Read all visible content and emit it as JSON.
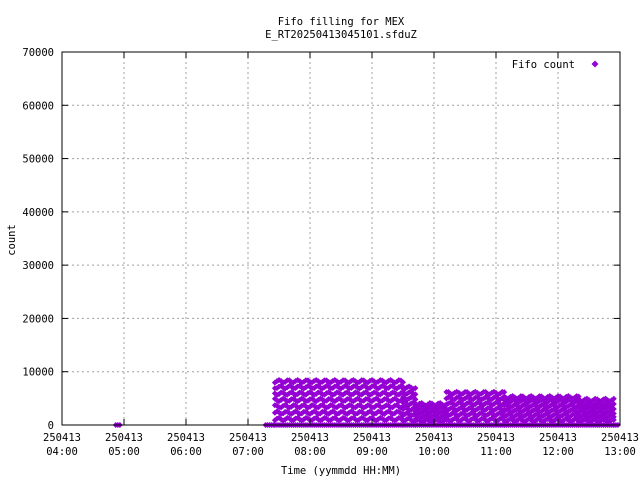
{
  "chart_data": {
    "type": "scatter",
    "title": "Fifo filling for MEX",
    "subtitle": "E_RT20250413045101.sfduZ",
    "xlabel": "Time (yymmdd HH:MM)",
    "ylabel": "count",
    "x_tick_labels": [
      [
        "250413",
        "04:00"
      ],
      [
        "250413",
        "05:00"
      ],
      [
        "250413",
        "06:00"
      ],
      [
        "250413",
        "07:00"
      ],
      [
        "250413",
        "08:00"
      ],
      [
        "250413",
        "09:00"
      ],
      [
        "250413",
        "10:00"
      ],
      [
        "250413",
        "11:00"
      ],
      [
        "250413",
        "12:00"
      ],
      [
        "250413",
        "13:00"
      ]
    ],
    "xlim": [
      "2025-04-13 04:00",
      "2025-04-13 13:00"
    ],
    "y_ticks": [
      0,
      10000,
      20000,
      30000,
      40000,
      50000,
      60000,
      70000
    ],
    "ylim": [
      0,
      70000
    ],
    "grid": true,
    "legend_position": "top-right",
    "color": "#9400d3",
    "series": [
      {
        "name": "Fifo count",
        "segments": [
          {
            "start": "04:52",
            "end": "04:56",
            "levels": [
              0
            ]
          },
          {
            "start": "07:17",
            "end": "07:26",
            "levels": [
              0
            ]
          },
          {
            "start": "07:26",
            "end": "09:30",
            "levels": [
              0,
              1100,
              2300,
              3500,
              4700,
              5900,
              7100,
              8200
            ]
          },
          {
            "start": "09:30",
            "end": "09:42",
            "levels": [
              0,
              1000,
              2000,
              3000,
              4000,
              5000,
              6000,
              7000
            ]
          },
          {
            "start": "09:42",
            "end": "10:12",
            "levels": [
              0,
              800,
              1600,
              2400,
              3200,
              3900
            ]
          },
          {
            "start": "10:12",
            "end": "11:08",
            "levels": [
              0,
              1000,
              2000,
              3000,
              4000,
              5000,
              6000
            ]
          },
          {
            "start": "11:08",
            "end": "12:20",
            "levels": [
              0,
              900,
              1800,
              2700,
              3600,
              4500,
              5200
            ]
          },
          {
            "start": "12:20",
            "end": "12:54",
            "levels": [
              0,
              800,
              1600,
              2400,
              3200,
              3900,
              4700
            ]
          },
          {
            "start": "12:54",
            "end": "12:58",
            "levels": [
              0
            ]
          }
        ]
      }
    ]
  }
}
